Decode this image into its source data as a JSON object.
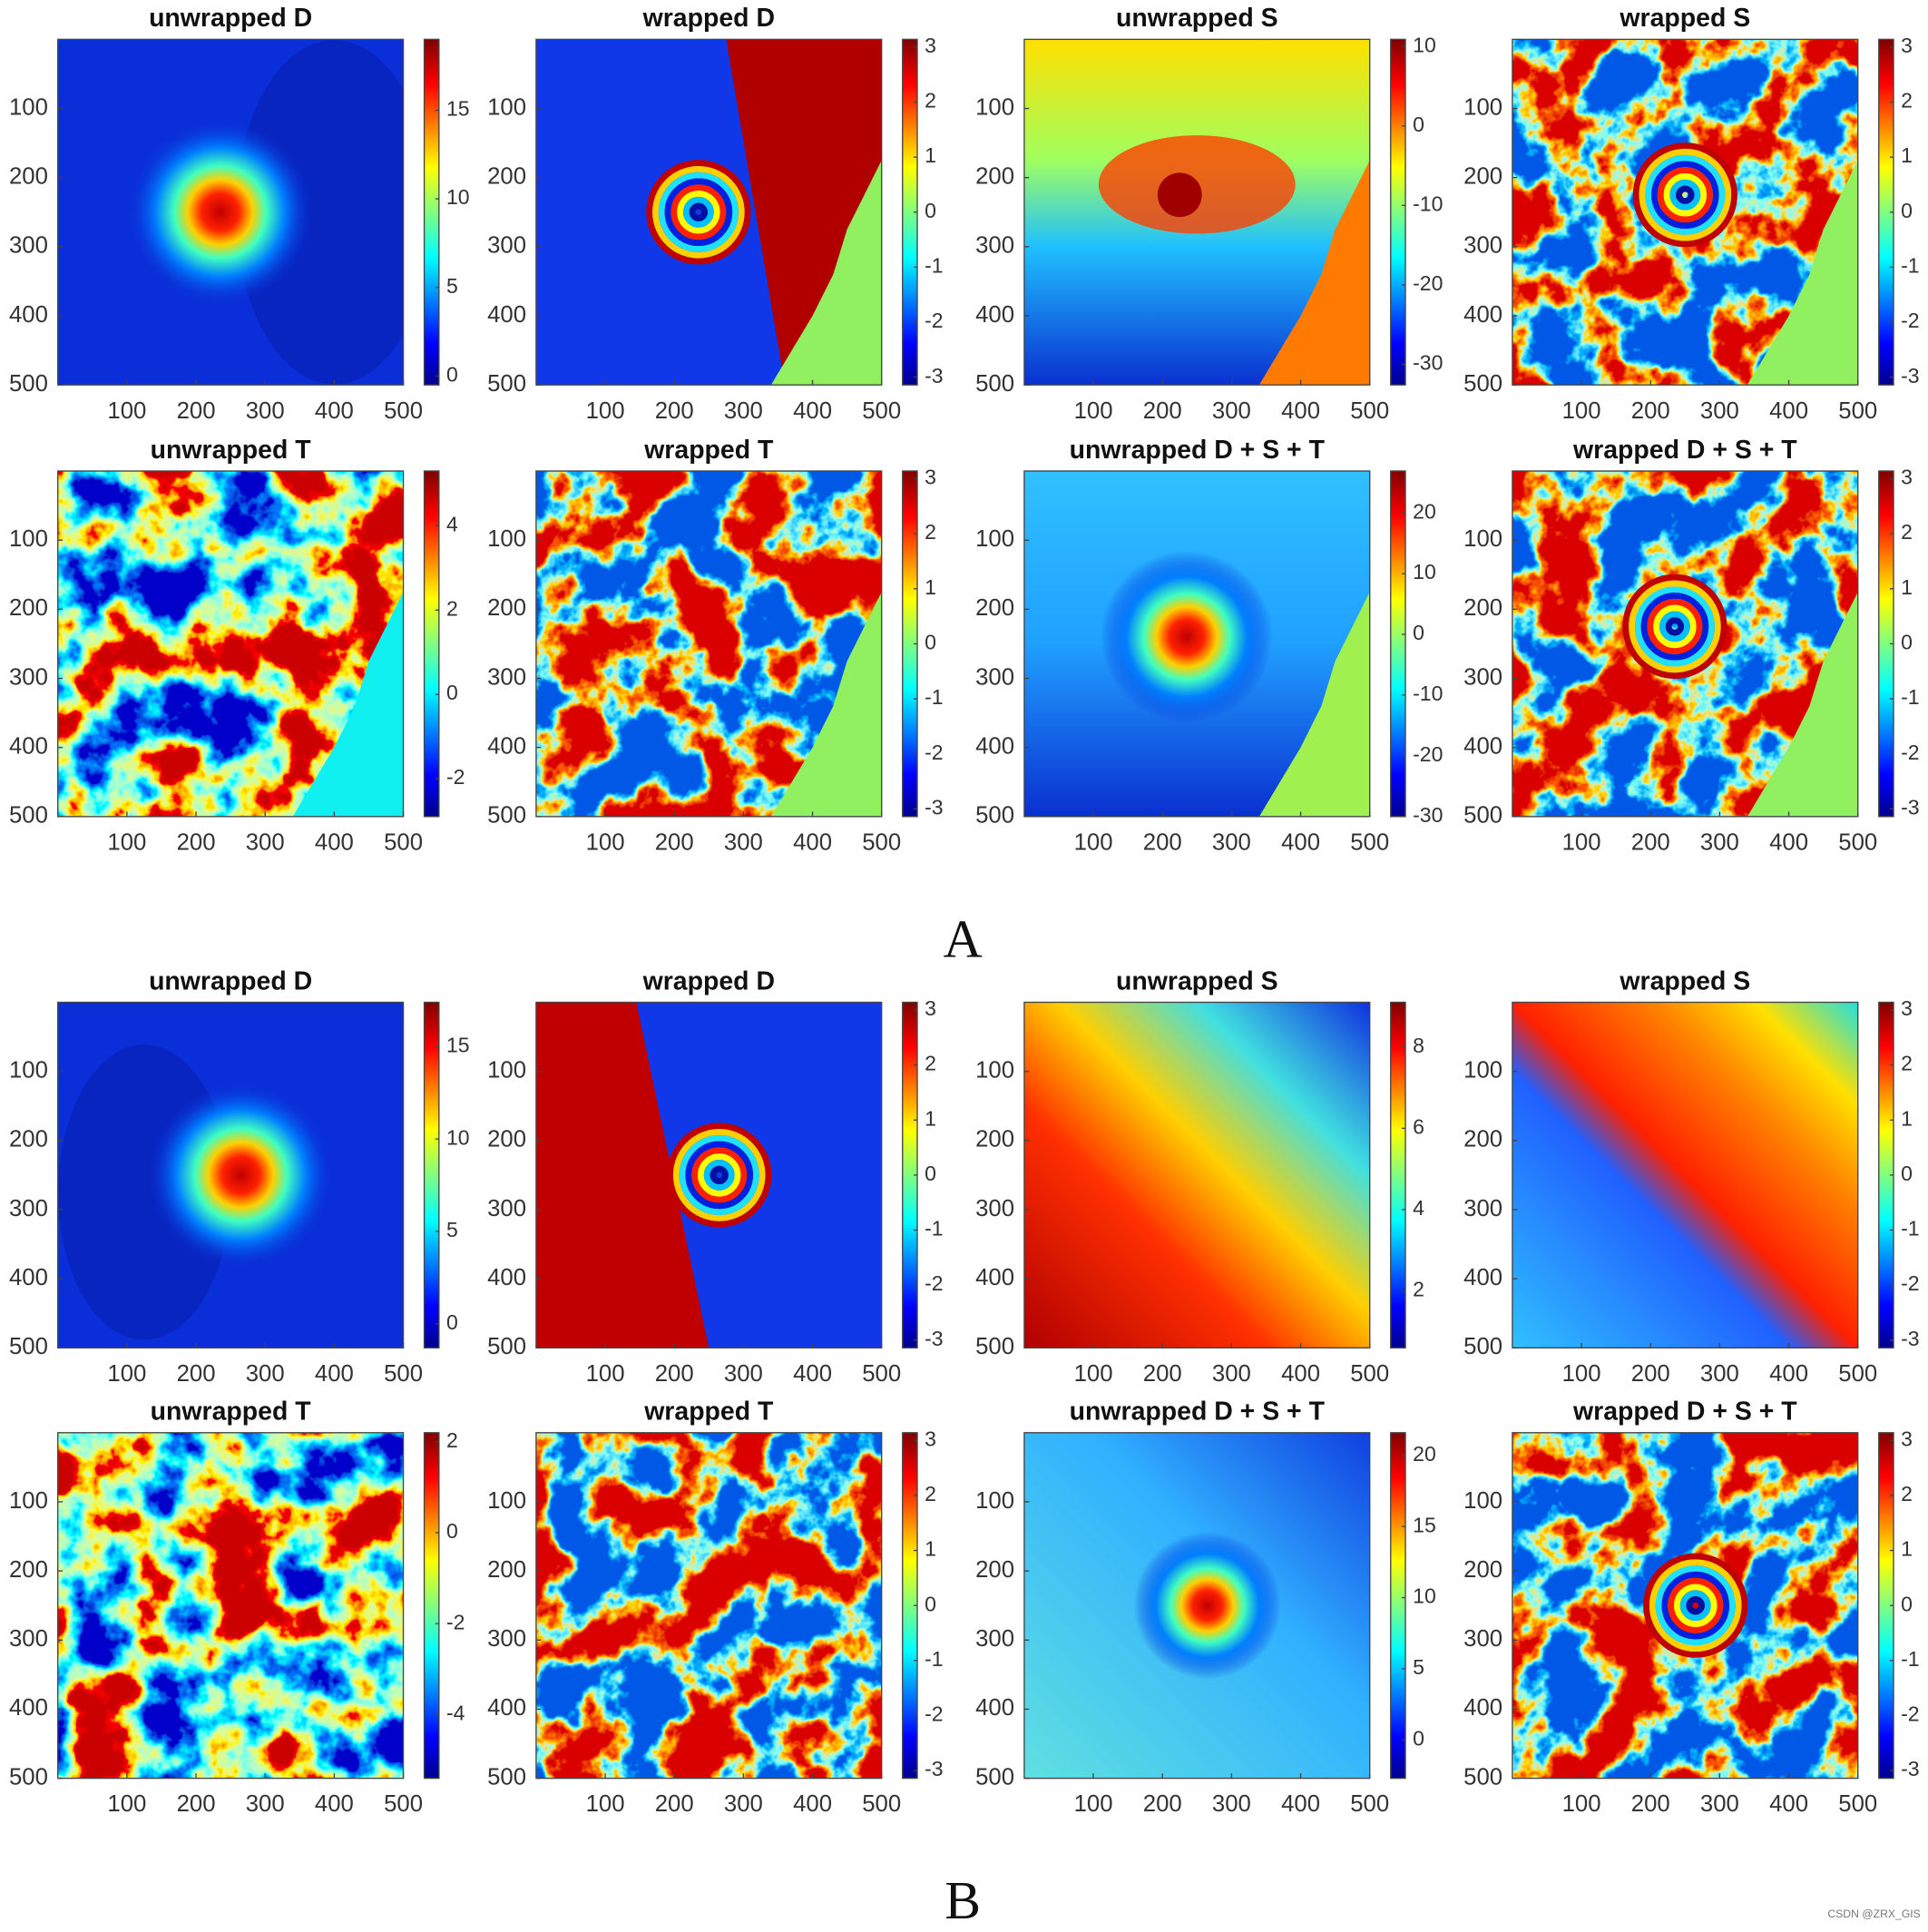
{
  "chart_data": [
    {
      "type": "heatmap",
      "title": "unwrapped D",
      "xlim": [
        0,
        500
      ],
      "ylim": [
        0,
        500
      ],
      "yreverse": true,
      "xticks": [
        100,
        200,
        300,
        400,
        500
      ],
      "yticks": [
        100,
        200,
        300,
        400,
        500
      ],
      "clim": [
        -0.5,
        19
      ],
      "cticks": [
        0,
        5,
        10,
        15
      ],
      "colormap": "jet"
    },
    {
      "type": "heatmap",
      "title": "wrapped D",
      "xlim": [
        0,
        500
      ],
      "ylim": [
        0,
        500
      ],
      "yreverse": true,
      "xticks": [
        100,
        200,
        300,
        400,
        500
      ],
      "yticks": [
        100,
        200,
        300,
        400,
        500
      ],
      "clim": [
        -3.14,
        3.14
      ],
      "cticks": [
        -3,
        -2,
        -1,
        0,
        1,
        2,
        3
      ],
      "colormap": "jet"
    },
    {
      "type": "heatmap",
      "title": "unwrapped S",
      "xlim": [
        0,
        500
      ],
      "ylim": [
        0,
        500
      ],
      "yreverse": true,
      "xticks": [
        100,
        200,
        300,
        400,
        500
      ],
      "yticks": [
        100,
        200,
        300,
        400,
        500
      ],
      "clim": [
        -32.6,
        10.9
      ],
      "cticks": [
        -30,
        -20,
        -10,
        0,
        10
      ],
      "colormap": "jet"
    },
    {
      "type": "heatmap",
      "title": "wrapped S",
      "xlim": [
        0,
        500
      ],
      "ylim": [
        0,
        500
      ],
      "yreverse": true,
      "xticks": [
        100,
        200,
        300,
        400,
        500
      ],
      "yticks": [
        100,
        200,
        300,
        400,
        500
      ],
      "clim": [
        -3.14,
        3.14
      ],
      "cticks": [
        -3,
        -2,
        -1,
        0,
        1,
        2,
        3
      ],
      "colormap": "jet"
    },
    {
      "type": "heatmap",
      "title": "unwrapped T",
      "xlim": [
        0,
        500
      ],
      "ylim": [
        0,
        500
      ],
      "yreverse": true,
      "xticks": [
        100,
        200,
        300,
        400,
        500
      ],
      "yticks": [
        100,
        200,
        300,
        400,
        500
      ],
      "clim": [
        -2.9,
        5.3
      ],
      "cticks": [
        -2,
        0,
        2,
        4
      ],
      "colormap": "jet"
    },
    {
      "type": "heatmap",
      "title": "wrapped T",
      "xlim": [
        0,
        500
      ],
      "ylim": [
        0,
        500
      ],
      "yreverse": true,
      "xticks": [
        100,
        200,
        300,
        400,
        500
      ],
      "yticks": [
        100,
        200,
        300,
        400,
        500
      ],
      "clim": [
        -3.14,
        3.14
      ],
      "cticks": [
        -3,
        -2,
        -1,
        0,
        1,
        2,
        3
      ],
      "colormap": "jet"
    },
    {
      "type": "heatmap",
      "title": "unwrapped D + S + T",
      "xlim": [
        0,
        500
      ],
      "ylim": [
        0,
        500
      ],
      "yreverse": true,
      "xticks": [
        100,
        200,
        300,
        400,
        500
      ],
      "yticks": [
        100,
        200,
        300,
        400,
        500
      ],
      "clim": [
        -30,
        26.9
      ],
      "cticks": [
        -30,
        -20,
        -10,
        0,
        10,
        20
      ],
      "colormap": "jet"
    },
    {
      "type": "heatmap",
      "title": "wrapped D + S + T",
      "xlim": [
        0,
        500
      ],
      "ylim": [
        0,
        500
      ],
      "yreverse": true,
      "xticks": [
        100,
        200,
        300,
        400,
        500
      ],
      "yticks": [
        100,
        200,
        300,
        400,
        500
      ],
      "clim": [
        -3.14,
        3.14
      ],
      "cticks": [
        -3,
        -2,
        -1,
        0,
        1,
        2,
        3
      ],
      "colormap": "jet"
    },
    {
      "type": "heatmap",
      "title": "unwrapped D",
      "xlim": [
        0,
        500
      ],
      "ylim": [
        0,
        500
      ],
      "yreverse": true,
      "xticks": [
        100,
        200,
        300,
        400,
        500
      ],
      "yticks": [
        100,
        200,
        300,
        400,
        500
      ],
      "clim": [
        -1.3,
        17.4
      ],
      "cticks": [
        0,
        5,
        10,
        15
      ],
      "colormap": "jet"
    },
    {
      "type": "heatmap",
      "title": "wrapped D",
      "xlim": [
        0,
        500
      ],
      "ylim": [
        0,
        500
      ],
      "yreverse": true,
      "xticks": [
        100,
        200,
        300,
        400,
        500
      ],
      "yticks": [
        100,
        200,
        300,
        400,
        500
      ],
      "clim": [
        -3.14,
        3.14
      ],
      "cticks": [
        -3,
        -2,
        -1,
        0,
        1,
        2,
        3
      ],
      "colormap": "jet"
    },
    {
      "type": "heatmap",
      "title": "unwrapped S",
      "xlim": [
        0,
        500
      ],
      "ylim": [
        0,
        500
      ],
      "yreverse": true,
      "xticks": [
        100,
        200,
        300,
        400,
        500
      ],
      "yticks": [
        100,
        200,
        300,
        400,
        500
      ],
      "clim": [
        0.6,
        9.1
      ],
      "cticks": [
        2,
        4,
        6,
        8
      ],
      "colormap": "jet"
    },
    {
      "type": "heatmap",
      "title": "wrapped S",
      "xlim": [
        0,
        500
      ],
      "ylim": [
        0,
        500
      ],
      "yreverse": true,
      "xticks": [
        100,
        200,
        300,
        400,
        500
      ],
      "yticks": [
        100,
        200,
        300,
        400,
        500
      ],
      "clim": [
        -3.14,
        3.14
      ],
      "cticks": [
        -3,
        -2,
        -1,
        0,
        1,
        2,
        3
      ],
      "colormap": "jet"
    },
    {
      "type": "heatmap",
      "title": "unwrapped T",
      "xlim": [
        0,
        500
      ],
      "ylim": [
        0,
        500
      ],
      "yreverse": true,
      "xticks": [
        100,
        200,
        300,
        400,
        500
      ],
      "yticks": [
        100,
        200,
        300,
        400,
        500
      ],
      "clim": [
        -5.4,
        2.2
      ],
      "cticks": [
        -4,
        -2,
        0,
        2
      ],
      "colormap": "jet"
    },
    {
      "type": "heatmap",
      "title": "wrapped T",
      "xlim": [
        0,
        500
      ],
      "ylim": [
        0,
        500
      ],
      "yreverse": true,
      "xticks": [
        100,
        200,
        300,
        400,
        500
      ],
      "yticks": [
        100,
        200,
        300,
        400,
        500
      ],
      "clim": [
        -3.14,
        3.14
      ],
      "cticks": [
        -3,
        -2,
        -1,
        0,
        1,
        2,
        3
      ],
      "colormap": "jet"
    },
    {
      "type": "heatmap",
      "title": "unwrapped D + S + T",
      "xlim": [
        0,
        500
      ],
      "ylim": [
        0,
        500
      ],
      "yreverse": true,
      "xticks": [
        100,
        200,
        300,
        400,
        500
      ],
      "yticks": [
        100,
        200,
        300,
        400,
        500
      ],
      "clim": [
        -2.7,
        21.6
      ],
      "cticks": [
        0,
        5,
        10,
        15,
        20
      ],
      "colormap": "jet"
    },
    {
      "type": "heatmap",
      "title": "wrapped D + S + T",
      "xlim": [
        0,
        500
      ],
      "ylim": [
        0,
        500
      ],
      "yreverse": true,
      "xticks": [
        100,
        200,
        300,
        400,
        500
      ],
      "yticks": [
        100,
        200,
        300,
        400,
        500
      ],
      "clim": [
        -3.14,
        3.14
      ],
      "cticks": [
        -3,
        -2,
        -1,
        0,
        1,
        2,
        3
      ],
      "colormap": "jet"
    }
  ],
  "figure_labels": [
    "A",
    "B"
  ],
  "watermark": "CSDN @ZRX_GIS"
}
